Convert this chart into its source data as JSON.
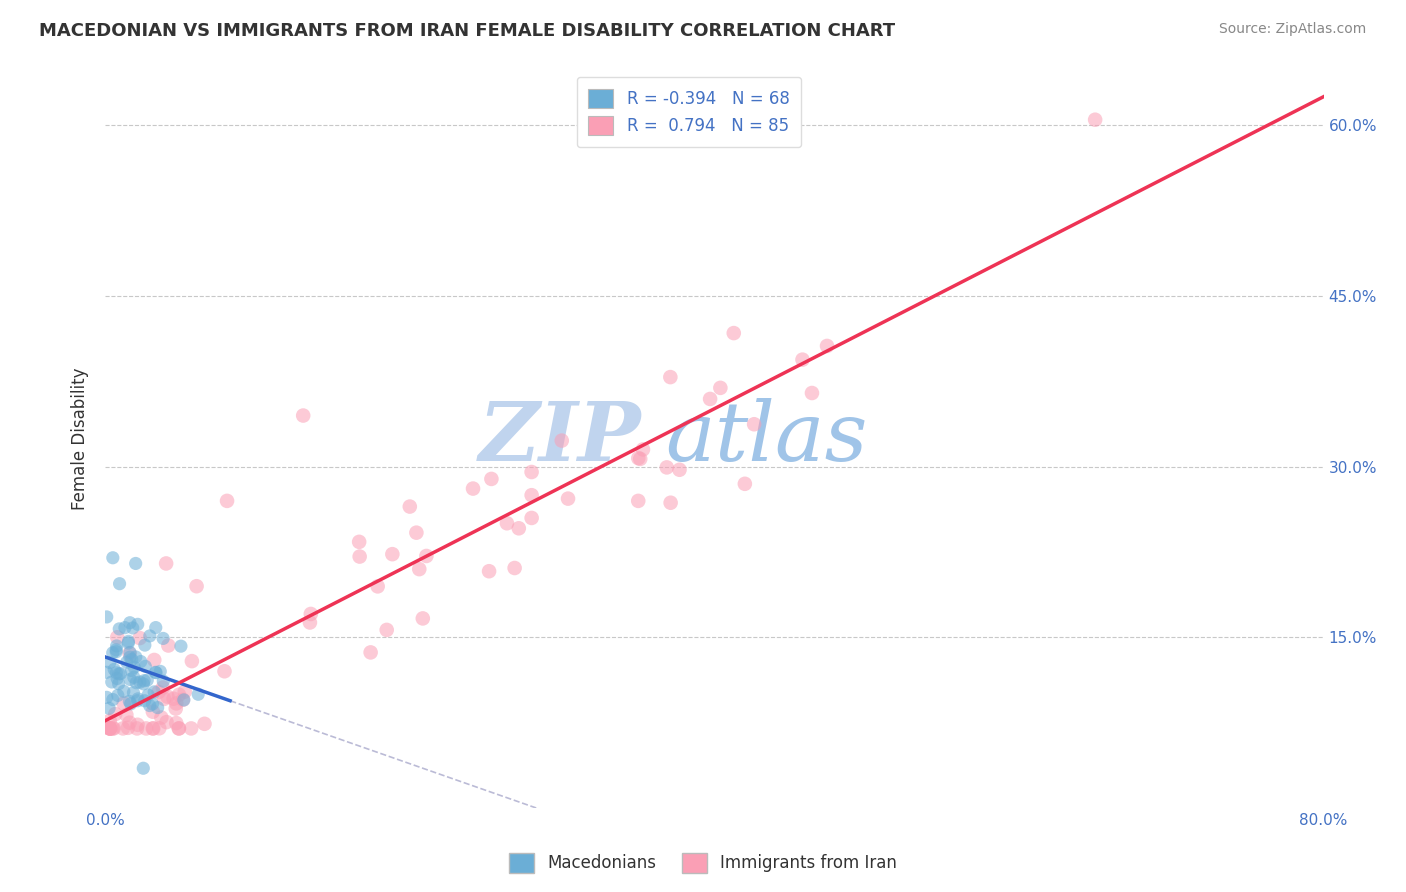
{
  "title": "MACEDONIAN VS IMMIGRANTS FROM IRAN FEMALE DISABILITY CORRELATION CHART",
  "source": "Source: ZipAtlas.com",
  "ylabel": "Female Disability",
  "xlabel": "",
  "watermark_part1": "ZIP",
  "watermark_part2": "atlas",
  "xlim": [
    0.0,
    0.8
  ],
  "ylim": [
    0.0,
    0.65
  ],
  "macedonian_color": "#6baed6",
  "iran_color": "#fa9fb5",
  "legend_R_macedonian": "-0.394",
  "legend_N_macedonian": 68,
  "legend_R_iran": "0.794",
  "legend_N_iran": 85,
  "bg_color": "#ffffff",
  "grid_color": "#c8c8c8",
  "title_color": "#333333",
  "source_color": "#888888",
  "axis_label_color": "#4472c4",
  "watermark_color1": "#c0d4ee",
  "watermark_color2": "#a0c4e8",
  "regression_line_color_mac": "#3366cc",
  "regression_line_color_iran": "#ee3355",
  "regression_dashed_color": "#aaaacc"
}
